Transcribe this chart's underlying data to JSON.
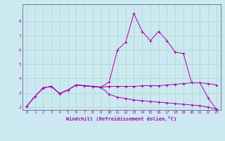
{
  "xlabel": "Windchill (Refroidissement éolien,°C)",
  "background_color": "#cce8f0",
  "grid_color": "#a8d8cc",
  "line_color": "#aa00aa",
  "x_values": [
    0,
    1,
    2,
    3,
    4,
    5,
    6,
    7,
    8,
    9,
    10,
    11,
    12,
    13,
    14,
    15,
    16,
    17,
    18,
    19,
    20,
    21,
    22,
    23
  ],
  "line1_y": [
    2.05,
    2.75,
    3.35,
    3.45,
    2.95,
    3.2,
    3.55,
    3.5,
    3.45,
    3.4,
    3.75,
    6.0,
    6.55,
    8.55,
    7.3,
    6.65,
    7.3,
    6.65,
    5.85,
    5.75,
    3.7,
    3.7,
    2.65,
    1.85
  ],
  "line2_y": [
    2.05,
    2.75,
    3.35,
    3.45,
    2.95,
    3.2,
    3.55,
    3.5,
    3.45,
    3.4,
    3.45,
    3.45,
    3.45,
    3.45,
    3.5,
    3.5,
    3.5,
    3.55,
    3.6,
    3.65,
    3.7,
    3.7,
    3.65,
    3.55
  ],
  "line3_y": [
    2.05,
    2.75,
    3.35,
    3.45,
    2.95,
    3.2,
    3.55,
    3.5,
    3.45,
    3.4,
    2.9,
    2.7,
    2.6,
    2.5,
    2.45,
    2.4,
    2.35,
    2.3,
    2.25,
    2.2,
    2.15,
    2.1,
    2.0,
    1.85
  ],
  "ylim": [
    1.8,
    9.2
  ],
  "xlim": [
    -0.5,
    23.5
  ],
  "yticks": [
    2,
    3,
    4,
    5,
    6,
    7,
    8
  ],
  "xticks": [
    0,
    1,
    2,
    3,
    4,
    5,
    6,
    7,
    8,
    9,
    10,
    11,
    12,
    13,
    14,
    15,
    16,
    17,
    18,
    19,
    20,
    21,
    22,
    23
  ]
}
